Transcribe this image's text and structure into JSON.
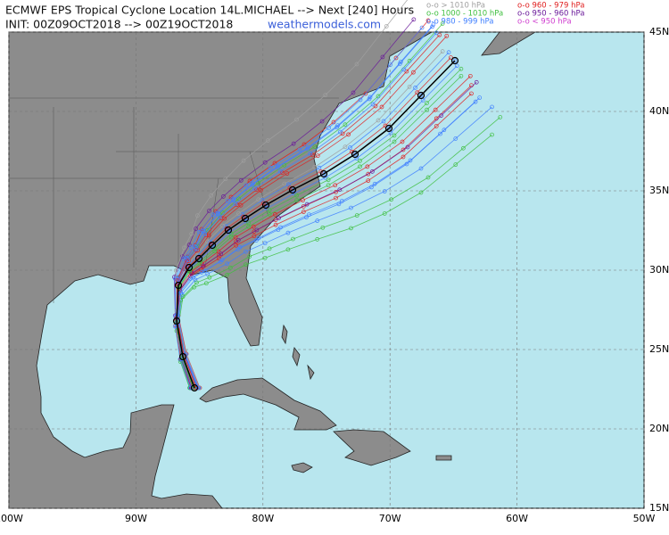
{
  "header": {
    "title": "ECMWF EPS Tropical Cyclone Location 14L.MICHAEL --> Next [240] Hours",
    "init": "INIT: 00Z09OCT2018 --> 00Z19OCT2018",
    "site": "weathermodels.com"
  },
  "legend": [
    {
      "label": "o-o > 1010 hPa",
      "color": "#a0a0a0"
    },
    {
      "label": "o-o 1000 - 1010 hPa",
      "color": "#3fbf3f"
    },
    {
      "label": "o-o 980 - 999 hPa",
      "color": "#3f7fff"
    },
    {
      "label": "o-o 960 - 979 hPa",
      "color": "#e02020"
    },
    {
      "label": "o-o 950 - 960 hPa",
      "color": "#6a1a9a"
    },
    {
      "label": "o-o < 950 hPa",
      "color": "#d040d0"
    }
  ],
  "map": {
    "xlim": [
      -100,
      -50
    ],
    "ylim": [
      15,
      45
    ],
    "xticks": [
      {
        "value": -100,
        "label": "100W"
      },
      {
        "value": -90,
        "label": "90W"
      },
      {
        "value": -80,
        "label": "80W"
      },
      {
        "value": -70,
        "label": "70W"
      },
      {
        "value": -60,
        "label": "60W"
      },
      {
        "value": -50,
        "label": "50W"
      }
    ],
    "yticks": [
      {
        "value": 15,
        "label": "15N"
      },
      {
        "value": 20,
        "label": "20N"
      },
      {
        "value": 25,
        "label": "25N"
      },
      {
        "value": 30,
        "label": "30N"
      },
      {
        "value": 35,
        "label": "35N"
      },
      {
        "value": 40,
        "label": "40N"
      },
      {
        "value": 45,
        "label": "45N"
      }
    ]
  }
}
